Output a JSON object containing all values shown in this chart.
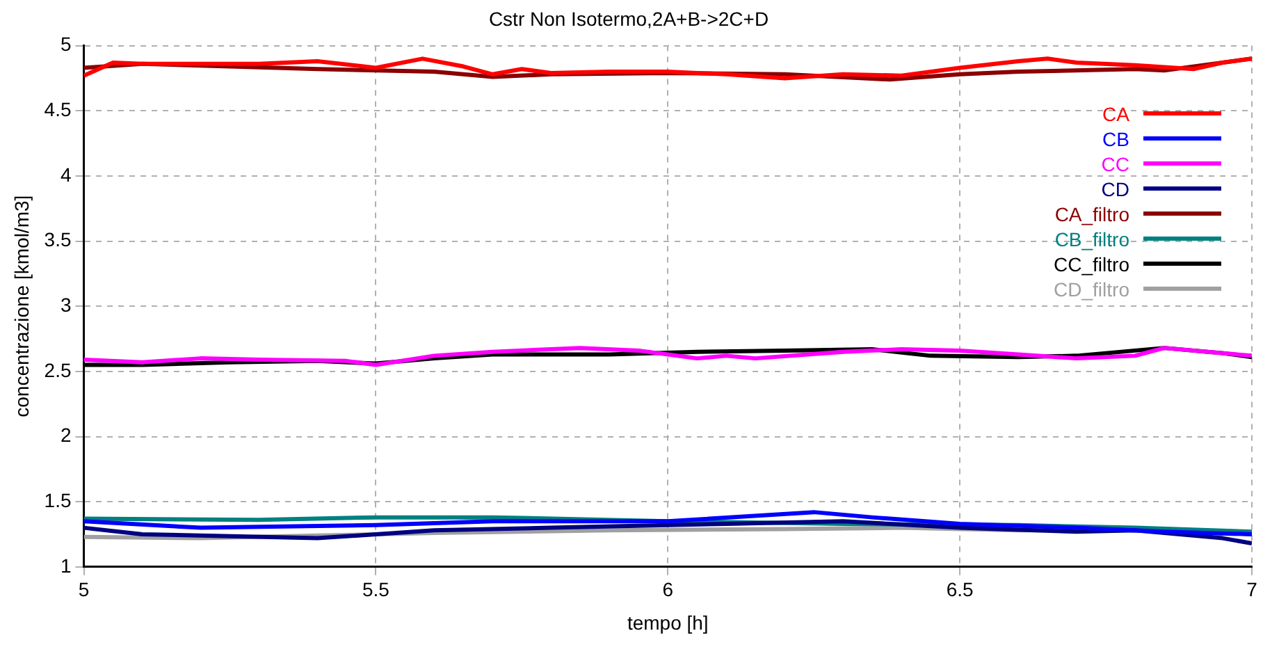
{
  "chart_data": {
    "type": "line",
    "title": "Cstr Non Isotermo,2A+B->2C+D",
    "xlabel": "tempo [h]",
    "ylabel": "concentrazione [kmol/m3]",
    "xlim": [
      5,
      7
    ],
    "xticks": [
      5,
      5.5,
      6,
      6.5,
      7
    ],
    "ylim": [
      1,
      5
    ],
    "yticks": [
      1,
      1.5,
      2,
      2.5,
      3,
      3.5,
      4,
      4.5,
      5
    ],
    "grid": true,
    "legend": "top right",
    "marker": "none",
    "line_style": "solid",
    "series": [
      {
        "name": "CA",
        "color": "#ff0000",
        "x": [
          5,
          5.05,
          5.1,
          5.2,
          5.3,
          5.4,
          5.5,
          5.58,
          5.65,
          5.7,
          5.75,
          5.8,
          5.9,
          6,
          6.1,
          6.2,
          6.3,
          6.4,
          6.5,
          6.6,
          6.65,
          6.7,
          6.8,
          6.9,
          6.95,
          7
        ],
        "values": [
          4.77,
          4.87,
          4.86,
          4.86,
          4.86,
          4.88,
          4.83,
          4.9,
          4.84,
          4.78,
          4.82,
          4.79,
          4.8,
          4.8,
          4.78,
          4.75,
          4.78,
          4.77,
          4.83,
          4.88,
          4.9,
          4.87,
          4.85,
          4.82,
          4.87,
          4.9
        ]
      },
      {
        "name": "CB",
        "color": "#0000ff",
        "x": [
          5,
          5.2,
          5.5,
          5.7,
          6,
          6.25,
          6.35,
          6.5,
          6.7,
          6.85,
          7
        ],
        "values": [
          1.35,
          1.3,
          1.32,
          1.35,
          1.35,
          1.42,
          1.38,
          1.33,
          1.3,
          1.27,
          1.25
        ]
      },
      {
        "name": "CC",
        "color": "#ff00ff",
        "x": [
          5,
          5.1,
          5.2,
          5.3,
          5.45,
          5.5,
          5.6,
          5.7,
          5.85,
          5.95,
          6.05,
          6.1,
          6.15,
          6.3,
          6.4,
          6.5,
          6.6,
          6.7,
          6.8,
          6.85,
          6.9,
          7
        ],
        "values": [
          2.59,
          2.57,
          2.6,
          2.59,
          2.58,
          2.55,
          2.62,
          2.65,
          2.68,
          2.66,
          2.6,
          2.62,
          2.6,
          2.65,
          2.67,
          2.66,
          2.63,
          2.6,
          2.62,
          2.68,
          2.66,
          2.62
        ]
      },
      {
        "name": "CD",
        "color": "#000080",
        "x": [
          5,
          5.1,
          5.4,
          5.6,
          5.8,
          6.1,
          6.3,
          6.5,
          6.7,
          6.8,
          6.95,
          7
        ],
        "values": [
          1.3,
          1.25,
          1.22,
          1.28,
          1.3,
          1.33,
          1.35,
          1.3,
          1.27,
          1.28,
          1.22,
          1.18
        ]
      },
      {
        "name": "CA_filtro",
        "color": "#8b0000",
        "x": [
          5,
          5.1,
          5.25,
          5.4,
          5.6,
          5.7,
          5.8,
          6,
          6.2,
          6.38,
          6.5,
          6.6,
          6.8,
          6.85,
          7
        ],
        "values": [
          4.83,
          4.86,
          4.84,
          4.82,
          4.8,
          4.76,
          4.78,
          4.79,
          4.78,
          4.74,
          4.78,
          4.8,
          4.82,
          4.81,
          4.9
        ]
      },
      {
        "name": "CB_filtro",
        "color": "#008080",
        "x": [
          5,
          5.3,
          5.5,
          5.7,
          6,
          6.3,
          6.6,
          6.8,
          7
        ],
        "values": [
          1.37,
          1.36,
          1.38,
          1.38,
          1.35,
          1.33,
          1.32,
          1.3,
          1.27
        ]
      },
      {
        "name": "CC_filtro",
        "color": "#000000",
        "x": [
          5,
          5.1,
          5.25,
          5.4,
          5.5,
          5.6,
          5.7,
          5.9,
          6.05,
          6.2,
          6.35,
          6.45,
          6.6,
          6.7,
          6.8,
          6.85,
          6.95,
          7
        ],
        "values": [
          2.55,
          2.55,
          2.57,
          2.58,
          2.56,
          2.6,
          2.63,
          2.63,
          2.65,
          2.66,
          2.67,
          2.62,
          2.61,
          2.62,
          2.66,
          2.68,
          2.64,
          2.61
        ]
      },
      {
        "name": "CD_filtro",
        "color": "#a0a0a0",
        "x": [
          5,
          5.2,
          5.4,
          5.6,
          5.9,
          6.2,
          6.4,
          6.6,
          6.9,
          7
        ],
        "values": [
          1.23,
          1.22,
          1.24,
          1.26,
          1.28,
          1.29,
          1.3,
          1.28,
          1.28,
          1.25
        ]
      }
    ]
  }
}
